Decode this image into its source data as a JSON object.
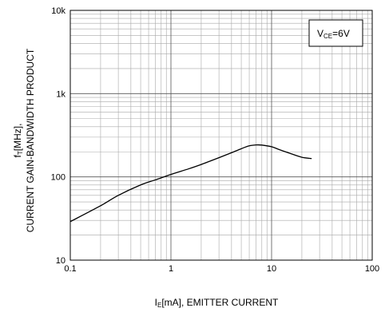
{
  "chart_data": {
    "type": "line",
    "xscale": "log",
    "yscale": "log",
    "xlim": [
      0.1,
      100
    ],
    "ylim": [
      10,
      10000
    ],
    "x_ticks": [
      {
        "value": 0.1,
        "label": "0.1"
      },
      {
        "value": 1,
        "label": "1"
      },
      {
        "value": 10,
        "label": "10"
      },
      {
        "value": 100,
        "label": "100"
      }
    ],
    "y_ticks": [
      {
        "value": 10,
        "label": "10"
      },
      {
        "value": 100,
        "label": "100"
      },
      {
        "value": 1000,
        "label": "1k"
      },
      {
        "value": 10000,
        "label": "10k"
      }
    ],
    "xlabel": {
      "main": "I",
      "sub": "E",
      "rest": "[mA], EMITTER CURRENT"
    },
    "ylabel": {
      "line1_main": "f",
      "line1_sub": "T",
      "line1_rest": "[MHz],",
      "line2": "CURRENT GAIN-BANDWIDTH PRODUCT"
    },
    "annotation": {
      "main": "V",
      "sub": "CE",
      "rest": "=6V",
      "position": "top-right"
    },
    "grid": true,
    "series": [
      {
        "color": "#000000",
        "x": [
          0.1,
          0.2,
          0.3,
          0.5,
          0.7,
          1,
          1.5,
          2,
          3,
          4,
          5,
          6,
          7,
          8,
          10,
          12,
          15,
          20,
          25
        ],
        "y": [
          29,
          45,
          60,
          80,
          92,
          107,
          125,
          141,
          170,
          195,
          218,
          236,
          242,
          241,
          230,
          212,
          193,
          172,
          166
        ]
      }
    ]
  }
}
